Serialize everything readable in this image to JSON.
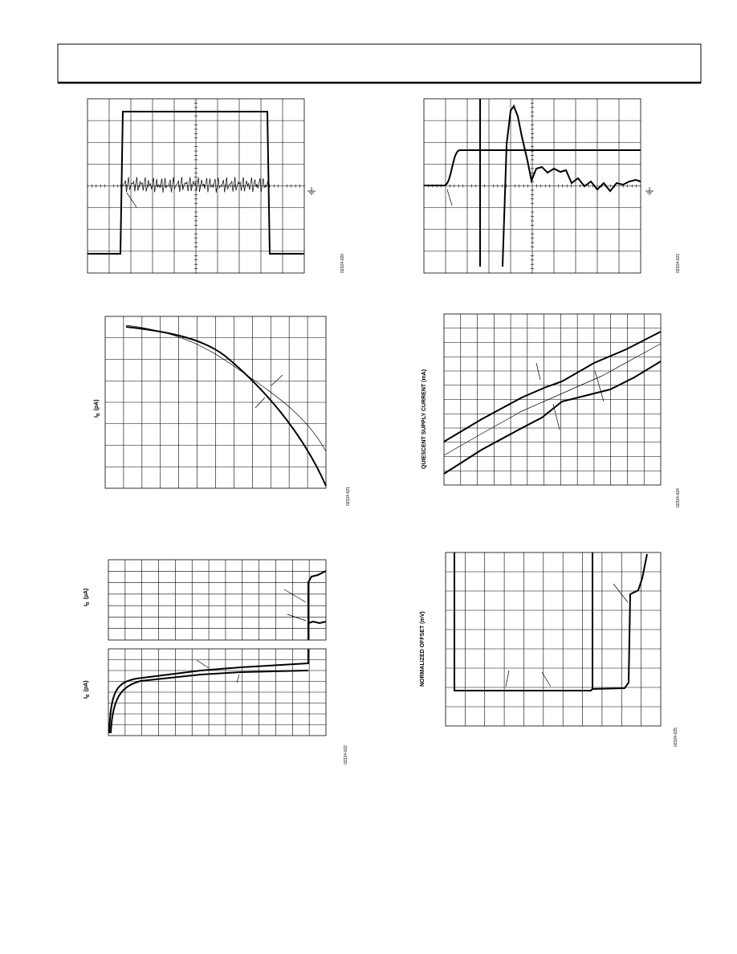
{
  "figures": [
    {
      "id": "02324-020"
    },
    {
      "id": "02324-023"
    },
    {
      "y_label_symbol": "I",
      "y_label_subscript": "B",
      "y_label_unit": "(pA)",
      "id": "02324-021"
    },
    {
      "y_label": "QUIESCENT SUPPLY CURRENT (mA)",
      "id": "02324-024"
    },
    {
      "top_y_label_symbol": "I",
      "top_y_label_subscript": "B",
      "top_y_label_unit": "(µA)",
      "bottom_y_label_symbol": "I",
      "bottom_y_label_subscript": "B",
      "bottom_y_label_unit": "(pA)",
      "id": "02324-022"
    },
    {
      "y_label": "NORMALIZED OFFSET (mV)",
      "id": "02324-025"
    }
  ]
}
